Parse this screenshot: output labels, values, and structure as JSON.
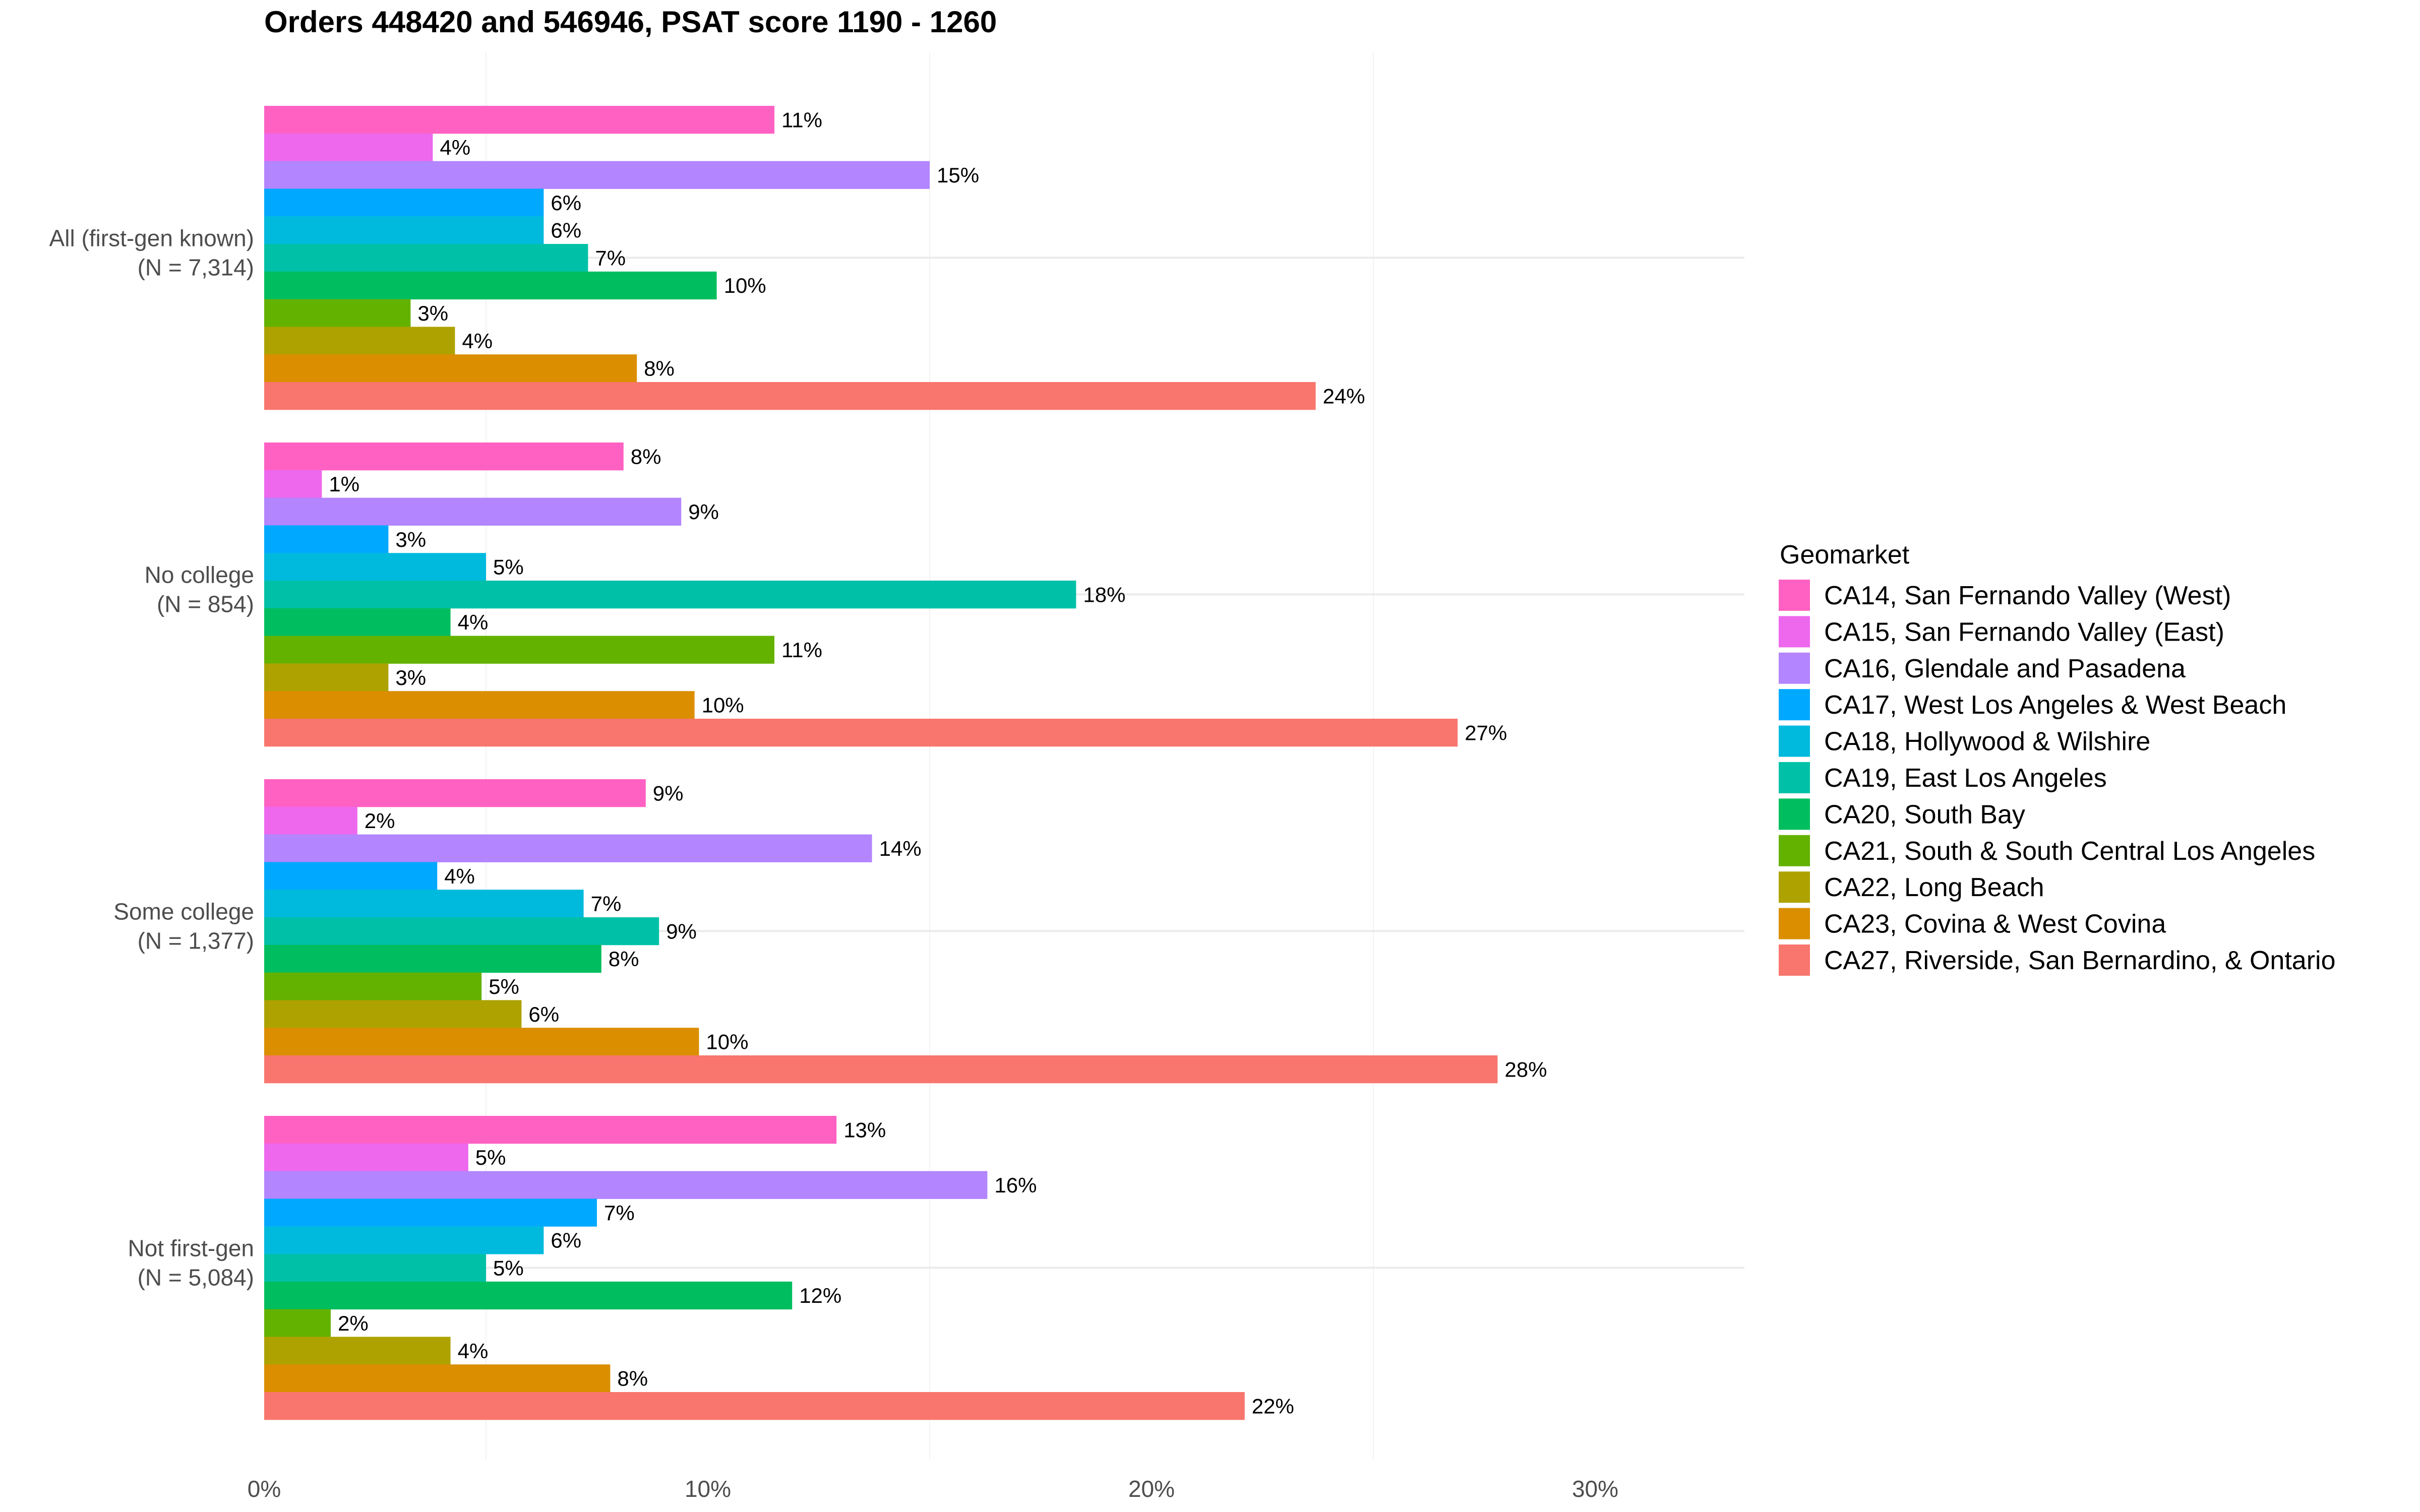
{
  "chart_data": {
    "type": "bar",
    "orientation": "horizontal",
    "title": "Orders 448420 and 546946, PSAT score 1190 - 1260",
    "xlabel": "",
    "ylabel": "",
    "xlim": [
      0,
      33.3
    ],
    "x_ticks": [
      0,
      10,
      20,
      30
    ],
    "x_tick_labels": [
      "0%",
      "10%",
      "20%",
      "30%"
    ],
    "grid": true,
    "legend": {
      "title": "Geomarket",
      "position": "right"
    },
    "categories": [
      "All (first-gen known)\n(N = 7,314)",
      "No college\n(N = 854)",
      "Some college\n(N = 1,377)",
      "Not first-gen\n(N = 5,084)"
    ],
    "series": [
      {
        "name": "CA14, San Fernando Valley (West)",
        "color": "#FF61C3",
        "values": [
          11.5,
          8.1,
          8.6,
          12.9
        ],
        "labels": [
          "11%",
          "8%",
          "9%",
          "13%"
        ]
      },
      {
        "name": "CA15, San Fernando Valley (East)",
        "color": "#ED68ED",
        "values": [
          3.8,
          1.3,
          2.1,
          4.6
        ],
        "labels": [
          "4%",
          "1%",
          "2%",
          "5%"
        ]
      },
      {
        "name": "CA16, Glendale and Pasadena",
        "color": "#B385FF",
        "values": [
          15.0,
          9.4,
          13.7,
          16.3
        ],
        "labels": [
          "15%",
          "9%",
          "14%",
          "16%"
        ]
      },
      {
        "name": "CA17, West Los Angeles & West Beach",
        "color": "#00A9FF",
        "values": [
          6.3,
          2.8,
          3.9,
          7.5
        ],
        "labels": [
          "6%",
          "3%",
          "4%",
          "7%"
        ]
      },
      {
        "name": "CA18, Hollywood & Wilshire",
        "color": "#00BADE",
        "values": [
          6.3,
          5.0,
          7.2,
          6.3
        ],
        "labels": [
          "6%",
          "5%",
          "7%",
          "6%"
        ]
      },
      {
        "name": "CA19, East Los Angeles",
        "color": "#00C1A7",
        "values": [
          7.3,
          18.3,
          8.9,
          5.0
        ],
        "labels": [
          "7%",
          "18%",
          "9%",
          "5%"
        ]
      },
      {
        "name": "CA20, South Bay",
        "color": "#00BE5F",
        "values": [
          10.2,
          4.2,
          7.6,
          11.9
        ],
        "labels": [
          "10%",
          "4%",
          "8%",
          "12%"
        ]
      },
      {
        "name": "CA21, South & South Central Los Angeles",
        "color": "#64B200",
        "values": [
          3.3,
          11.5,
          4.9,
          1.5
        ],
        "labels": [
          "3%",
          "11%",
          "5%",
          "2%"
        ]
      },
      {
        "name": "CA22, Long Beach",
        "color": "#AEA200",
        "values": [
          4.3,
          2.8,
          5.8,
          4.2
        ],
        "labels": [
          "4%",
          "3%",
          "6%",
          "4%"
        ]
      },
      {
        "name": "CA23, Covina & West Covina",
        "color": "#DB8E00",
        "values": [
          8.4,
          9.7,
          9.8,
          7.8
        ],
        "labels": [
          "8%",
          "10%",
          "10%",
          "8%"
        ]
      },
      {
        "name": "CA27, Riverside, San Bernardino, & Ontario",
        "color": "#F8766D",
        "values": [
          23.7,
          26.9,
          27.8,
          22.1
        ],
        "labels": [
          "24%",
          "27%",
          "28%",
          "22%"
        ]
      }
    ]
  }
}
